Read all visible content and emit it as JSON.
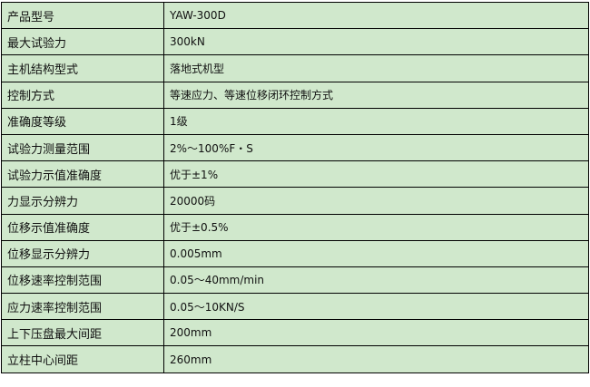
{
  "rows": [
    {
      "label": "产品型号",
      "value": "YAW-300D"
    },
    {
      "label": "最大试验力",
      "value": "300kN"
    },
    {
      "label": "主机结构型式",
      "value": "落地式机型"
    },
    {
      "label": "控制方式",
      "value": "等速应力、等速位移闭环控制方式"
    },
    {
      "label": "准确度等级",
      "value": "1级"
    },
    {
      "label": "试验力测量范围",
      "value": "2%～100%F・S"
    },
    {
      "label": "试验力示值准确度",
      "value": "优于±1%"
    },
    {
      "label": "力显示分辨力",
      "value": "20000码"
    },
    {
      "label": "位移示值准确度",
      "value": "优于±0.5%"
    },
    {
      "label": "位移显示分辨力",
      "value": "0.005mm"
    },
    {
      "label": "位移速率控制范围",
      "value": "0.05～40mm/min"
    },
    {
      "label": "应力速率控制范围",
      "value": "0.05～10KN/S"
    },
    {
      "label": "上下压盘最大间距",
      "value": "200mm"
    },
    {
      "label": "立柱中心间距",
      "value": "260mm"
    }
  ]
}
